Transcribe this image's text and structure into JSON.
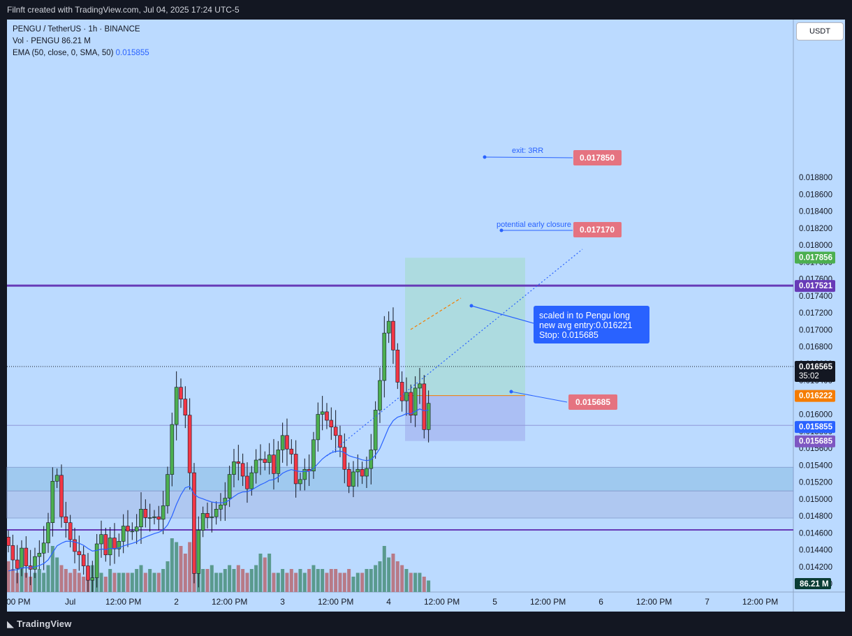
{
  "header": {
    "text": "Filnft created with TradingView.com, Jul 04, 2025 17:24 UTC-5"
  },
  "legend": {
    "symbol": "PENGU / TetherUS · 1h · BINANCE",
    "vol": "Vol · PENGU  86.21 M",
    "ema_label": "EMA (50, close, 0, SMA, 50)",
    "ema_value": "0.015855"
  },
  "currency": "USDT",
  "colors": {
    "background": "#bbdaff",
    "up": "#4caf50",
    "down": "#f23645",
    "vol_up": "#5a9a8e",
    "vol_down": "#b77a87",
    "ema": "#2962ff",
    "level_line": "#673ab7",
    "target_label": "#e57380",
    "stop_label": "#e57380",
    "entry_line": "#f57c00"
  },
  "chart_data": {
    "type": "candlestick",
    "symbol": "PENGU / TetherUS",
    "interval": "1h",
    "exchange": "BINANCE",
    "y_axis": {
      "range": [
        0.0138,
        0.019
      ],
      "ticks": [
        "0.018800",
        "0.018600",
        "0.018400",
        "0.018200",
        "0.018000",
        "0.017800",
        "0.017600",
        "0.017400",
        "0.017200",
        "0.017000",
        "0.016800",
        "0.016600",
        "0.016400",
        "0.016200",
        "0.016000",
        "0.015800",
        "0.015600",
        "0.015400",
        "0.015200",
        "0.015000",
        "0.014800",
        "0.014600",
        "0.014400",
        "0.014200",
        "0.014000"
      ]
    },
    "x_axis": {
      "ticks": [
        {
          "label": ":00 PM",
          "idx": 2
        },
        {
          "label": "Jul",
          "idx": 14
        },
        {
          "label": "12:00 PM",
          "idx": 26
        },
        {
          "label": "2",
          "idx": 38
        },
        {
          "label": "12:00 PM",
          "idx": 50
        },
        {
          "label": "3",
          "idx": 62
        },
        {
          "label": "12:00 PM",
          "idx": 74
        },
        {
          "label": "4",
          "idx": 86
        },
        {
          "label": "12:00 PM",
          "idx": 98
        },
        {
          "label": "5",
          "idx": 110
        },
        {
          "label": "12:00 PM",
          "idx": 122
        },
        {
          "label": "6",
          "idx": 134
        },
        {
          "label": "12:00 PM",
          "idx": 146
        },
        {
          "label": "7",
          "idx": 158
        },
        {
          "label": "12:00 PM",
          "idx": 170
        }
      ]
    },
    "closes": [
      0.01445,
      0.01428,
      0.01418,
      0.01442,
      0.01421,
      0.01417,
      0.01432,
      0.01436,
      0.01448,
      0.01472,
      0.01521,
      0.01528,
      0.01479,
      0.01472,
      0.01452,
      0.01438,
      0.01434,
      0.01421,
      0.01404,
      0.01407,
      0.01447,
      0.01458,
      0.01434,
      0.01454,
      0.01441,
      0.0145,
      0.01468,
      0.01462,
      0.01462,
      0.01467,
      0.01488,
      0.01478,
      0.01478,
      0.01479,
      0.01476,
      0.01492,
      0.01529,
      0.01588,
      0.01632,
      0.01618,
      0.01599,
      0.01531,
      0.01412,
      0.01463,
      0.01483,
      0.01478,
      0.01479,
      0.01488,
      0.01493,
      0.01501,
      0.01529,
      0.01544,
      0.01542,
      0.01527,
      0.01512,
      0.01531,
      0.01546,
      0.01547,
      0.01543,
      0.01552,
      0.0153,
      0.01558,
      0.01575,
      0.01559,
      0.01553,
      0.01518,
      0.01523,
      0.01535,
      0.01533,
      0.0157,
      0.016,
      0.01603,
      0.01593,
      0.01585,
      0.01575,
      0.01561,
      0.01535,
      0.01515,
      0.01532,
      0.01535,
      0.01527,
      0.01536,
      0.01558,
      0.01605,
      0.0164,
      0.01696,
      0.0171,
      0.01676,
      0.01638,
      0.01616,
      0.01626,
      0.01599,
      0.01631,
      0.01636,
      0.01582,
      0.01613
    ],
    "volumes": [
      0.8,
      0.6,
      0.5,
      0.6,
      0.5,
      0.4,
      0.5,
      0.6,
      0.5,
      0.7,
      1.2,
      0.9,
      0.7,
      0.6,
      0.5,
      0.6,
      0.5,
      0.4,
      0.6,
      0.7,
      0.5,
      0.5,
      0.4,
      0.6,
      0.5,
      0.5,
      0.5,
      0.5,
      0.5,
      0.6,
      0.7,
      0.5,
      0.6,
      0.5,
      0.5,
      0.6,
      0.8,
      1.4,
      1.3,
      1.2,
      1.0,
      1.3,
      1.5,
      0.8,
      0.6,
      0.6,
      0.7,
      0.5,
      0.5,
      0.6,
      0.7,
      0.6,
      0.7,
      0.6,
      0.5,
      0.6,
      0.7,
      1.0,
      0.9,
      1.0,
      0.5,
      0.5,
      0.6,
      0.5,
      0.6,
      0.5,
      0.6,
      0.5,
      0.6,
      0.7,
      0.6,
      0.6,
      0.5,
      0.6,
      0.6,
      0.5,
      0.5,
      0.6,
      0.4,
      0.5,
      0.5,
      0.6,
      0.6,
      0.7,
      0.8,
      1.2,
      0.9,
      1.0,
      0.8,
      0.7,
      0.6,
      0.5,
      0.5,
      0.5,
      0.4,
      0.3
    ],
    "volume_last": "86.21 M",
    "ema": {
      "label": "EMA (50, close, 0, SMA, 50)",
      "value": 0.015855
    },
    "levels": [
      {
        "value": 0.017521,
        "label": "0.017521",
        "kind": "resistance"
      },
      {
        "value": 0.014635,
        "label": "",
        "kind": "support"
      }
    ],
    "zones": [
      {
        "from": 0.015095,
        "to": 0.015375
      },
      {
        "from": 0.014775,
        "to": 0.015095
      }
    ],
    "position": {
      "type": "long",
      "entry": 0.016221,
      "stop": 0.015685,
      "target": 0.01785,
      "start_idx": 86,
      "end_idx": 116
    },
    "price_labels": [
      {
        "text": "0.017856",
        "value": 0.017856,
        "color": "#4caf50"
      },
      {
        "text": "0.017521",
        "value": 0.017521,
        "color": "#673ab7"
      },
      {
        "text": "0.016565",
        "value": 0.016565,
        "color": "#131722",
        "sub": "35:02"
      },
      {
        "text": "0.016222",
        "value": 0.016222,
        "color": "#f57c00"
      },
      {
        "text": "0.015855",
        "value": 0.015855,
        "color": "#2962ff"
      },
      {
        "text": "0.015685",
        "value": 0.015685,
        "color": "#7e57c2"
      }
    ],
    "annotations": [
      {
        "text": "exit: 3RR",
        "price_label": "0.017850"
      },
      {
        "text": "potential early closure",
        "price_label": "0.017170"
      },
      {
        "text": "0.015685",
        "price_label": ""
      }
    ],
    "callout": {
      "lines": [
        "scaled in to Pengu long",
        "new avg entry:0.016221",
        "Stop: 0.015685"
      ]
    },
    "current_price": "0.016565",
    "countdown": "35:02"
  },
  "footer": {
    "brand": "TradingView"
  }
}
